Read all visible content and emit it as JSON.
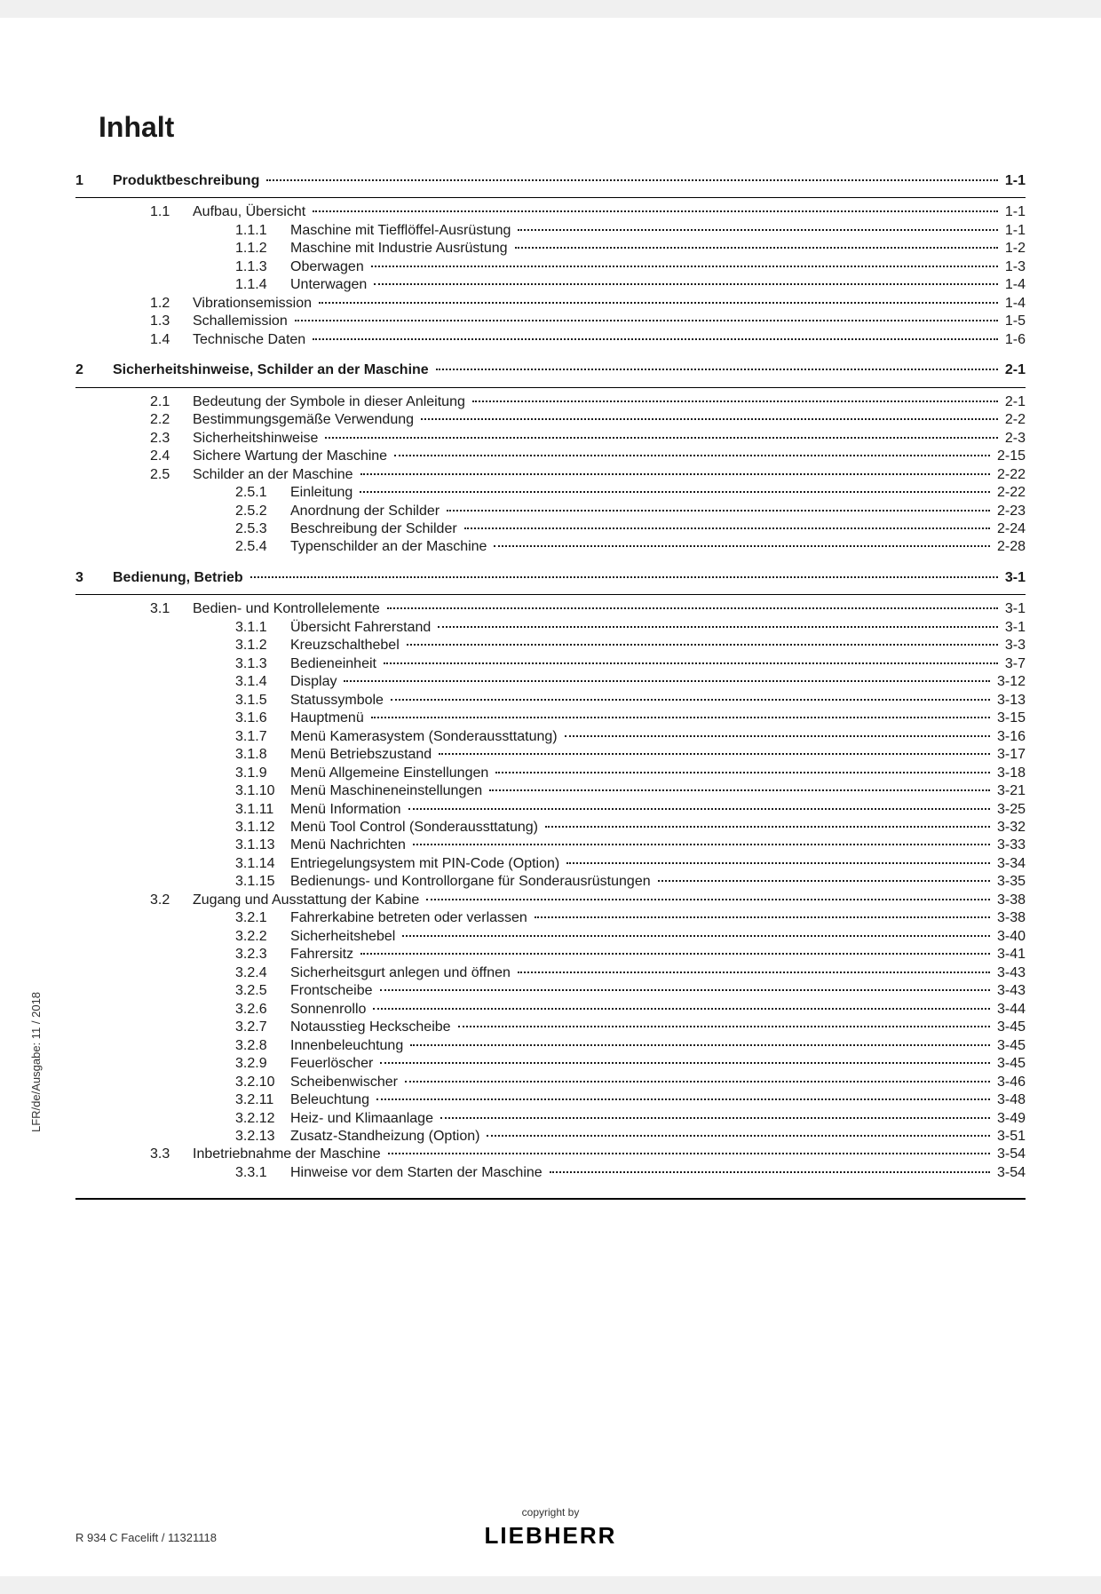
{
  "heading": "Inhalt",
  "vertical": "LFR/de/Ausgabe: 11 / 2018",
  "copyright": "copyright by",
  "brand": "LIEBHERR",
  "docid": "R 934 C Facelift / 11321118",
  "rows": [
    {
      "type": "l1",
      "num": "1",
      "title": "Produktbeschreibung",
      "page": "1-1",
      "bold": true,
      "gapBefore": false,
      "ruleAfter": true
    },
    {
      "type": "l2",
      "num": "1.1",
      "title": "Aufbau, Übersicht",
      "page": "1-1",
      "gapBefore": true
    },
    {
      "type": "l3",
      "num": "1.1.1",
      "title": "Maschine mit Tiefflöffel-Ausrüstung",
      "page": "1-1"
    },
    {
      "type": "l3",
      "num": "1.1.2",
      "title": "Maschine mit Industrie Ausrüstung",
      "page": "1-2"
    },
    {
      "type": "l3",
      "num": "1.1.3",
      "title": "Oberwagen",
      "page": "1-3"
    },
    {
      "type": "l3",
      "num": "1.1.4",
      "title": "Unterwagen",
      "page": "1-4"
    },
    {
      "type": "l2",
      "num": "1.2",
      "title": "Vibrationsemission",
      "page": "1-4"
    },
    {
      "type": "l2",
      "num": "1.3",
      "title": "Schallemission",
      "page": "1-5"
    },
    {
      "type": "l2",
      "num": "1.4",
      "title": "Technische Daten",
      "page": "1-6"
    },
    {
      "type": "l1",
      "num": "2",
      "title": "Sicherheitshinweise, Schilder an der Maschine",
      "page": "2-1",
      "bold": true,
      "gapBefore": true,
      "ruleAfter": true
    },
    {
      "type": "l2",
      "num": "2.1",
      "title": "Bedeutung der Symbole in dieser Anleitung",
      "page": "2-1",
      "gapBefore": true
    },
    {
      "type": "l2",
      "num": "2.2",
      "title": "Bestimmungsgemäße Verwendung",
      "page": "2-2"
    },
    {
      "type": "l2",
      "num": "2.3",
      "title": "Sicherheitshinweise",
      "page": "2-3"
    },
    {
      "type": "l2",
      "num": "2.4",
      "title": "Sichere Wartung der Maschine",
      "page": "2-15"
    },
    {
      "type": "l2",
      "num": "2.5",
      "title": "Schilder an der Maschine",
      "page": "2-22"
    },
    {
      "type": "l3",
      "num": "2.5.1",
      "title": "Einleitung",
      "page": "2-22"
    },
    {
      "type": "l3",
      "num": "2.5.2",
      "title": "Anordnung der Schilder",
      "page": "2-23"
    },
    {
      "type": "l3",
      "num": "2.5.3",
      "title": "Beschreibung der Schilder",
      "page": "2-24"
    },
    {
      "type": "l3",
      "num": "2.5.4",
      "title": "Typenschilder an der Maschine",
      "page": "2-28"
    },
    {
      "type": "l1",
      "num": "3",
      "title": "Bedienung, Betrieb",
      "page": "3-1",
      "bold": true,
      "gapBefore": true,
      "ruleAfter": true
    },
    {
      "type": "l2",
      "num": "3.1",
      "title": "Bedien- und Kontrollelemente",
      "page": "3-1",
      "gapBefore": true
    },
    {
      "type": "l3",
      "num": "3.1.1",
      "title": "Übersicht Fahrerstand",
      "page": "3-1"
    },
    {
      "type": "l3",
      "num": "3.1.2",
      "title": "Kreuzschalthebel",
      "page": "3-3"
    },
    {
      "type": "l3",
      "num": "3.1.3",
      "title": "Bedieneinheit",
      "page": "3-7"
    },
    {
      "type": "l3",
      "num": "3.1.4",
      "title": "Display",
      "page": "3-12"
    },
    {
      "type": "l3",
      "num": "3.1.5",
      "title": "Statussymbole",
      "page": "3-13"
    },
    {
      "type": "l3",
      "num": "3.1.6",
      "title": "Hauptmenü",
      "page": "3-15"
    },
    {
      "type": "l3",
      "num": "3.1.7",
      "title": "Menü Kamerasystem (Sonderaussttatung)",
      "page": "3-16"
    },
    {
      "type": "l3",
      "num": "3.1.8",
      "title": "Menü Betriebszustand",
      "page": "3-17"
    },
    {
      "type": "l3",
      "num": "3.1.9",
      "title": "Menü Allgemeine Einstellungen",
      "page": "3-18"
    },
    {
      "type": "l3",
      "num": "3.1.10",
      "title": "Menü Maschineneinstellungen",
      "page": "3-21"
    },
    {
      "type": "l3",
      "num": "3.1.11",
      "title": "Menü Information",
      "page": "3-25"
    },
    {
      "type": "l3",
      "num": "3.1.12",
      "title": "Menü Tool Control (Sonderaussttatung)",
      "page": "3-32"
    },
    {
      "type": "l3",
      "num": "3.1.13",
      "title": "Menü Nachrichten",
      "page": "3-33"
    },
    {
      "type": "l3",
      "num": "3.1.14",
      "title": "Entriegelungsystem mit PIN-Code (Option)",
      "page": "3-34"
    },
    {
      "type": "l3",
      "num": "3.1.15",
      "title": "Bedienungs- und Kontrollorgane für Sonderausrüstungen",
      "page": "3-35"
    },
    {
      "type": "l2",
      "num": "3.2",
      "title": "Zugang und Ausstattung der Kabine",
      "page": "3-38"
    },
    {
      "type": "l3",
      "num": "3.2.1",
      "title": "Fahrerkabine betreten oder verlassen",
      "page": "3-38"
    },
    {
      "type": "l3",
      "num": "3.2.2",
      "title": "Sicherheitshebel",
      "page": "3-40"
    },
    {
      "type": "l3",
      "num": "3.2.3",
      "title": "Fahrersitz",
      "page": "3-41"
    },
    {
      "type": "l3",
      "num": "3.2.4",
      "title": "Sicherheitsgurt anlegen und öffnen",
      "page": "3-43"
    },
    {
      "type": "l3",
      "num": "3.2.5",
      "title": "Frontscheibe",
      "page": "3-43"
    },
    {
      "type": "l3",
      "num": "3.2.6",
      "title": "Sonnenrollo",
      "page": "3-44"
    },
    {
      "type": "l3",
      "num": "3.2.7",
      "title": "Notausstieg Heckscheibe",
      "page": "3-45"
    },
    {
      "type": "l3",
      "num": "3.2.8",
      "title": "Innenbeleuchtung",
      "page": "3-45"
    },
    {
      "type": "l3",
      "num": "3.2.9",
      "title": "Feuerlöscher",
      "page": "3-45"
    },
    {
      "type": "l3",
      "num": "3.2.10",
      "title": "Scheibenwischer",
      "page": "3-46"
    },
    {
      "type": "l3",
      "num": "3.2.11",
      "title": "Beleuchtung",
      "page": "3-48"
    },
    {
      "type": "l3",
      "num": "3.2.12",
      "title": "Heiz- und Klimaanlage",
      "page": "3-49"
    },
    {
      "type": "l3",
      "num": "3.2.13",
      "title": "Zusatz-Standheizung (Option)",
      "page": "3-51"
    },
    {
      "type": "l2",
      "num": "3.3",
      "title": "Inbetriebnahme der Maschine",
      "page": "3-54"
    },
    {
      "type": "l3",
      "num": "3.3.1",
      "title": "Hinweise vor dem Starten der Maschine",
      "page": "3-54"
    }
  ]
}
